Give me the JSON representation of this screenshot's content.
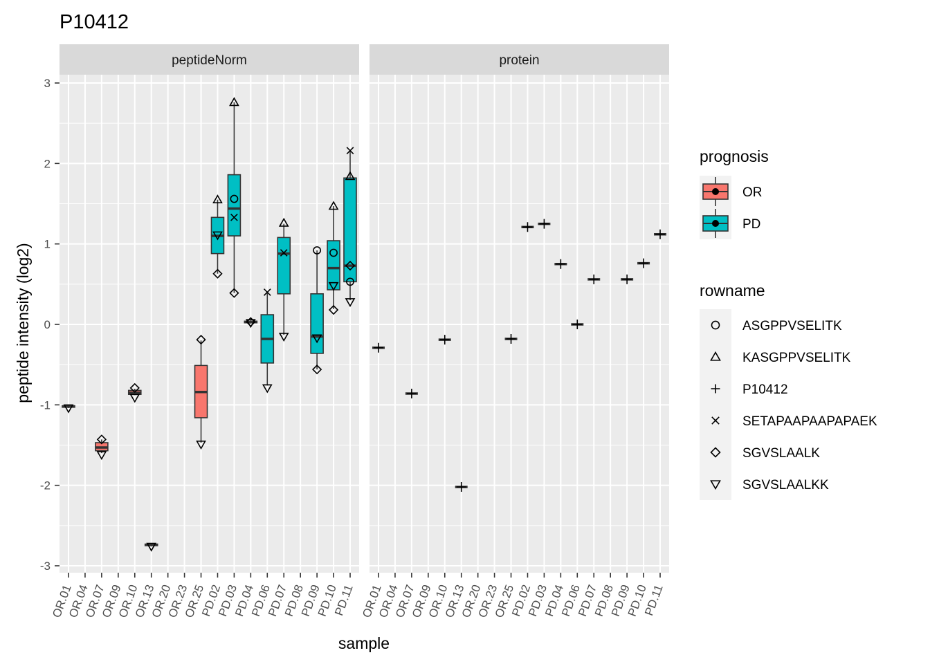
{
  "chart_data": {
    "type": "boxplot",
    "title": "P10412",
    "xlabel": "sample",
    "ylabel": "peptide intensity (log2)",
    "ylim": [
      -3,
      3
    ],
    "y_ticks": [
      -3,
      -2,
      -1,
      0,
      1,
      2,
      3
    ],
    "grid": true,
    "legend_position": "right",
    "samples": [
      "OR.01",
      "OR.04",
      "OR.07",
      "OR.09",
      "OR.10",
      "OR.13",
      "OR.20",
      "OR.23",
      "OR.25",
      "PD.02",
      "PD.03",
      "PD.04",
      "PD.06",
      "PD.07",
      "PD.08",
      "PD.09",
      "PD.10",
      "PD.11"
    ],
    "facets": [
      "peptideNorm",
      "protein"
    ],
    "fill_legend": {
      "title": "prognosis",
      "entries": [
        {
          "label": "OR",
          "color": "#F8766D"
        },
        {
          "label": "PD",
          "color": "#00BFC4"
        }
      ]
    },
    "shape_legend": {
      "title": "rowname",
      "entries": [
        {
          "label": "ASGPPVSELITK",
          "shape": "circle"
        },
        {
          "label": "KASGPPVSELITK",
          "shape": "triangle-up"
        },
        {
          "label": "P10412",
          "shape": "plus"
        },
        {
          "label": "SETAPAAPAAPAPAEK",
          "shape": "cross"
        },
        {
          "label": "SGVSLAALK",
          "shape": "diamond"
        },
        {
          "label": "SGVSLAALKK",
          "shape": "triangle-down"
        }
      ]
    },
    "peptideNorm": [
      {
        "sample": "OR.01",
        "prognosis": "OR",
        "box": {
          "min": -1.04,
          "q1": -1.03,
          "median": -1.02,
          "q3": -1.01,
          "max": -1.0
        },
        "points": [
          {
            "rowname": "SGVSLAALKK",
            "y": -1.04
          }
        ]
      },
      {
        "sample": "OR.07",
        "prognosis": "OR",
        "box": {
          "min": -1.6,
          "q1": -1.57,
          "median": -1.53,
          "q3": -1.47,
          "max": -1.43
        },
        "points": [
          {
            "rowname": "SGVSLAALK",
            "y": -1.43
          },
          {
            "rowname": "SGVSLAALKK",
            "y": -1.62
          }
        ]
      },
      {
        "sample": "OR.10",
        "prognosis": "OR",
        "box": {
          "min": -0.88,
          "q1": -0.87,
          "median": -0.85,
          "q3": -0.82,
          "max": -0.8
        },
        "points": [
          {
            "rowname": "SGVSLAALK",
            "y": -0.79
          },
          {
            "rowname": "SGVSLAALKK",
            "y": -0.91
          }
        ]
      },
      {
        "sample": "OR.13",
        "prognosis": "OR",
        "box": {
          "min": -2.76,
          "q1": -2.75,
          "median": -2.74,
          "q3": -2.73,
          "max": -2.72
        },
        "points": [
          {
            "rowname": "SGVSLAALKK",
            "y": -2.76
          }
        ]
      },
      {
        "sample": "OR.25",
        "prognosis": "OR",
        "box": {
          "min": -1.47,
          "q1": -1.16,
          "median": -0.84,
          "q3": -0.51,
          "max": -0.2
        },
        "points": [
          {
            "rowname": "SGVSLAALK",
            "y": -0.19
          },
          {
            "rowname": "SGVSLAALKK",
            "y": -1.49
          }
        ]
      },
      {
        "sample": "PD.02",
        "prognosis": "PD",
        "box": {
          "min": 0.63,
          "q1": 0.88,
          "median": 1.1,
          "q3": 1.33,
          "max": 1.55
        },
        "points": [
          {
            "rowname": "KASGPPVSELITK",
            "y": 1.55
          },
          {
            "rowname": "SGVSLAALK",
            "y": 0.63
          },
          {
            "rowname": "SGVSLAALKK",
            "y": 1.11
          }
        ]
      },
      {
        "sample": "PD.03",
        "prognosis": "PD",
        "box": {
          "min": 0.39,
          "q1": 1.1,
          "median": 1.44,
          "q3": 1.86,
          "max": 2.76
        },
        "points": [
          {
            "rowname": "ASGPPVSELITK",
            "y": 1.56
          },
          {
            "rowname": "KASGPPVSELITK",
            "y": 2.76
          },
          {
            "rowname": "SETAPAAPAAPAPAEK",
            "y": 1.33
          },
          {
            "rowname": "SGVSLAALK",
            "y": 0.39
          }
        ]
      },
      {
        "sample": "PD.04",
        "prognosis": "PD",
        "box": {
          "min": 0.01,
          "q1": 0.02,
          "median": 0.03,
          "q3": 0.04,
          "max": 0.05
        },
        "points": [
          {
            "rowname": "SGVSLAALK",
            "y": 0.03
          },
          {
            "rowname": "SGVSLAALKK",
            "y": 0.02
          }
        ]
      },
      {
        "sample": "PD.06",
        "prognosis": "PD",
        "box": {
          "min": -0.76,
          "q1": -0.48,
          "median": -0.18,
          "q3": 0.12,
          "max": 0.4
        },
        "points": [
          {
            "rowname": "SETAPAAPAAPAPAEK",
            "y": 0.4
          },
          {
            "rowname": "SGVSLAALKK",
            "y": -0.79
          }
        ]
      },
      {
        "sample": "PD.07",
        "prognosis": "PD",
        "box": {
          "min": -0.13,
          "q1": 0.38,
          "median": 0.88,
          "q3": 1.08,
          "max": 1.25
        },
        "points": [
          {
            "rowname": "KASGPPVSELITK",
            "y": 1.26
          },
          {
            "rowname": "SETAPAAPAAPAPAEK",
            "y": 0.89
          },
          {
            "rowname": "SGVSLAALKK",
            "y": -0.15
          }
        ]
      },
      {
        "sample": "PD.09",
        "prognosis": "PD",
        "box": {
          "min": -0.56,
          "q1": -0.36,
          "median": -0.15,
          "q3": 0.38,
          "max": 0.92
        },
        "points": [
          {
            "rowname": "ASGPPVSELITK",
            "y": 0.92
          },
          {
            "rowname": "SGVSLAALK",
            "y": -0.56
          },
          {
            "rowname": "SGVSLAALKK",
            "y": -0.17
          }
        ]
      },
      {
        "sample": "PD.10",
        "prognosis": "PD",
        "box": {
          "min": 0.19,
          "q1": 0.43,
          "median": 0.7,
          "q3": 1.04,
          "max": 1.47
        },
        "points": [
          {
            "rowname": "ASGPPVSELITK",
            "y": 0.89
          },
          {
            "rowname": "KASGPPVSELITK",
            "y": 1.47
          },
          {
            "rowname": "SGVSLAALK",
            "y": 0.18
          },
          {
            "rowname": "SGVSLAALKK",
            "y": 0.48
          }
        ]
      },
      {
        "sample": "PD.11",
        "prognosis": "PD",
        "box": {
          "min": 0.3,
          "q1": 0.53,
          "median": 0.73,
          "q3": 1.82,
          "max": 2.16
        },
        "points": [
          {
            "rowname": "ASGPPVSELITK",
            "y": 0.53
          },
          {
            "rowname": "KASGPPVSELITK",
            "y": 1.84
          },
          {
            "rowname": "SETAPAAPAAPAPAEK",
            "y": 2.16
          },
          {
            "rowname": "SGVSLAALK",
            "y": 0.73
          },
          {
            "rowname": "SGVSLAALKK",
            "y": 0.28
          }
        ]
      }
    ],
    "protein": [
      {
        "sample": "OR.01",
        "y": -0.29
      },
      {
        "sample": "OR.07",
        "y": -0.86
      },
      {
        "sample": "OR.10",
        "y": -0.19
      },
      {
        "sample": "OR.13",
        "y": -2.02
      },
      {
        "sample": "OR.25",
        "y": -0.18
      },
      {
        "sample": "PD.02",
        "y": 1.21
      },
      {
        "sample": "PD.03",
        "y": 1.25
      },
      {
        "sample": "PD.04",
        "y": 0.75
      },
      {
        "sample": "PD.06",
        "y": 0.0
      },
      {
        "sample": "PD.07",
        "y": 0.56
      },
      {
        "sample": "PD.09",
        "y": 0.56
      },
      {
        "sample": "PD.10",
        "y": 0.76
      },
      {
        "sample": "PD.11",
        "y": 1.12
      }
    ]
  }
}
